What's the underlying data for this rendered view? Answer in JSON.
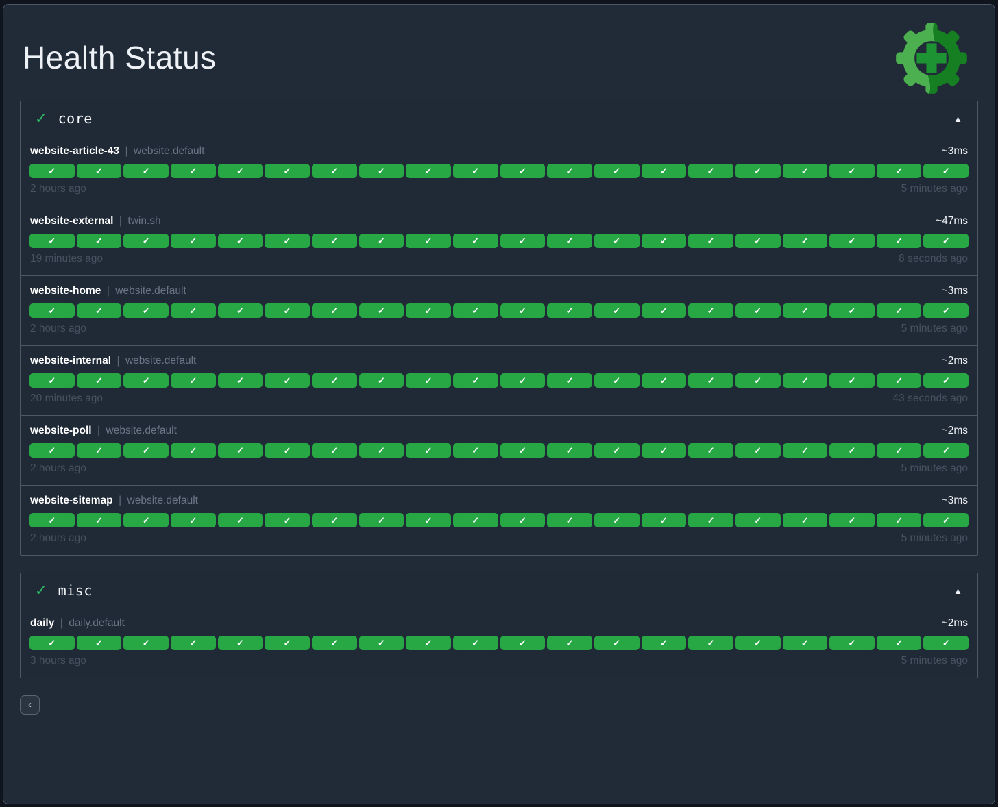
{
  "page": {
    "title": "Health Status"
  },
  "ui": {
    "separator": "|",
    "check_glyph": "✓",
    "section_check_glyph": "✓",
    "collapse_glyph": "▲",
    "back_glyph": "‹"
  },
  "colors": {
    "background": "#212b38",
    "panel_border": "#4d5765",
    "success_green": "#28a745",
    "status_check_green": "#2dbb63",
    "logo_light_green": "#4caf50",
    "logo_dark_green": "#157f22",
    "logo_plus_green": "#1d9333"
  },
  "sections": [
    {
      "name": "core",
      "services": [
        {
          "name": "website-article-43",
          "namespace": "website.default",
          "latency": "~3ms",
          "oldest": "2 hours ago",
          "latest": "5 minutes ago",
          "checks": 20
        },
        {
          "name": "website-external",
          "namespace": "twin.sh",
          "latency": "~47ms",
          "oldest": "19 minutes ago",
          "latest": "8 seconds ago",
          "checks": 20
        },
        {
          "name": "website-home",
          "namespace": "website.default",
          "latency": "~3ms",
          "oldest": "2 hours ago",
          "latest": "5 minutes ago",
          "checks": 20
        },
        {
          "name": "website-internal",
          "namespace": "website.default",
          "latency": "~2ms",
          "oldest": "20 minutes ago",
          "latest": "43 seconds ago",
          "checks": 20
        },
        {
          "name": "website-poll",
          "namespace": "website.default",
          "latency": "~2ms",
          "oldest": "2 hours ago",
          "latest": "5 minutes ago",
          "checks": 20
        },
        {
          "name": "website-sitemap",
          "namespace": "website.default",
          "latency": "~3ms",
          "oldest": "2 hours ago",
          "latest": "5 minutes ago",
          "checks": 20
        }
      ]
    },
    {
      "name": "misc",
      "services": [
        {
          "name": "daily",
          "namespace": "daily.default",
          "latency": "~2ms",
          "oldest": "3 hours ago",
          "latest": "5 minutes ago",
          "checks": 20
        }
      ]
    }
  ]
}
